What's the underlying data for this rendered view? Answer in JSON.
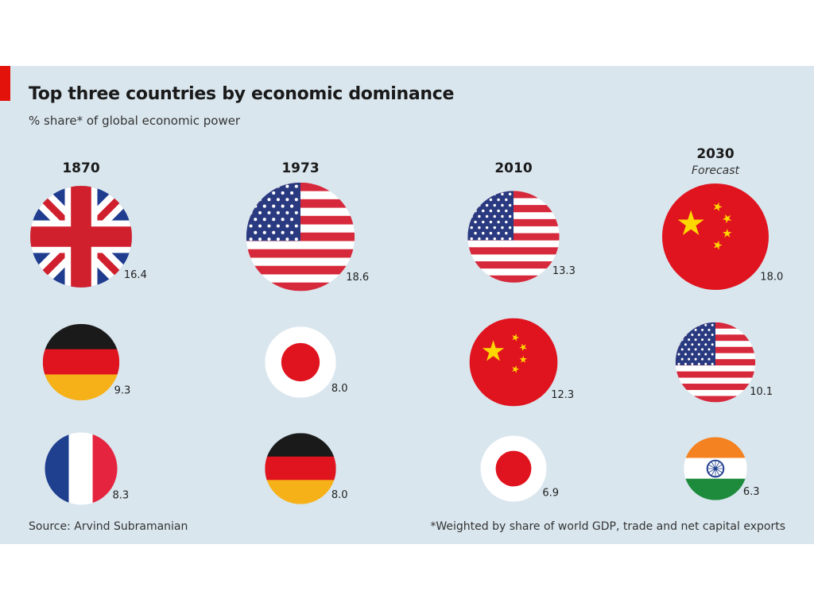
{
  "title": "Top three countries by economic dominance",
  "subtitle": "% share* of global economic power",
  "source": "Source: Arvind Subramanian",
  "footnote": "*Weighted by share of world GDP, trade and net capital exports",
  "colors": {
    "accent": "#e3120b",
    "panel": "#d9e6ee"
  },
  "chart_data": {
    "type": "bubble",
    "title": "Top three countries by economic dominance",
    "subtitle": "% share* of global economic power",
    "unit": "%",
    "columns": [
      {
        "year": "1870",
        "note": "",
        "entries": [
          {
            "flag": "uk-flag",
            "value": 16.4
          },
          {
            "flag": "germany-flag",
            "value": 9.3
          },
          {
            "flag": "france-flag",
            "value": 8.3
          }
        ]
      },
      {
        "year": "1973",
        "note": "",
        "entries": [
          {
            "flag": "usa-flag",
            "value": 18.6
          },
          {
            "flag": "japan-flag",
            "value": 8.0
          },
          {
            "flag": "germany-flag",
            "value": 8.0
          }
        ]
      },
      {
        "year": "2010",
        "note": "",
        "entries": [
          {
            "flag": "usa-flag",
            "value": 13.3
          },
          {
            "flag": "china-flag",
            "value": 12.3
          },
          {
            "flag": "japan-flag",
            "value": 6.9
          }
        ]
      },
      {
        "year": "2030",
        "note": "Forecast",
        "entries": [
          {
            "flag": "china-flag",
            "value": 18.0
          },
          {
            "flag": "usa-flag",
            "value": 10.1
          },
          {
            "flag": "india-flag",
            "value": 6.3
          }
        ]
      }
    ]
  }
}
